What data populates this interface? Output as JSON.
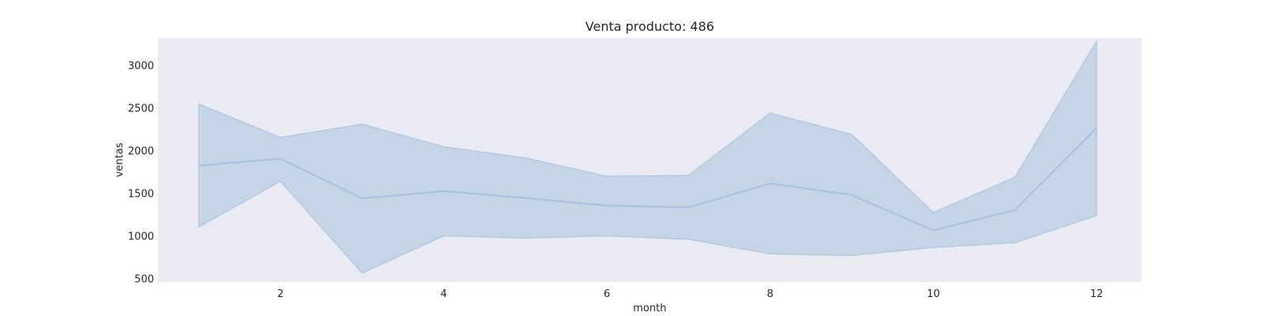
{
  "chart_data": {
    "type": "line",
    "title": "Venta producto: 486",
    "xlabel": "month",
    "ylabel": "ventas",
    "xlim": [
      0.5,
      12.55
    ],
    "ylim": [
      460,
      3320
    ],
    "x_ticks": [
      2,
      4,
      6,
      8,
      10,
      12
    ],
    "y_ticks": [
      500,
      1000,
      1500,
      2000,
      2500,
      3000
    ],
    "grid": false,
    "x": [
      1,
      2,
      3,
      4,
      5,
      6,
      7,
      8,
      9,
      10,
      11,
      12
    ],
    "series": [
      {
        "values": [
          1825,
          1905,
          1440,
          1525,
          1445,
          1355,
          1335,
          1615,
          1480,
          1065,
          1305,
          2265
        ],
        "ci_upper": [
          2545,
          2155,
          2310,
          2045,
          1915,
          1700,
          1710,
          2440,
          2190,
          1275,
          1690,
          3285
        ],
        "ci_lower": [
          1105,
          1640,
          565,
          1000,
          975,
          1000,
          960,
          790,
          770,
          865,
          920,
          1240
        ]
      }
    ],
    "colors": {
      "plot_background": "#eaeaf2",
      "line": "#a7c0dc",
      "band": "#b9cde0"
    }
  }
}
